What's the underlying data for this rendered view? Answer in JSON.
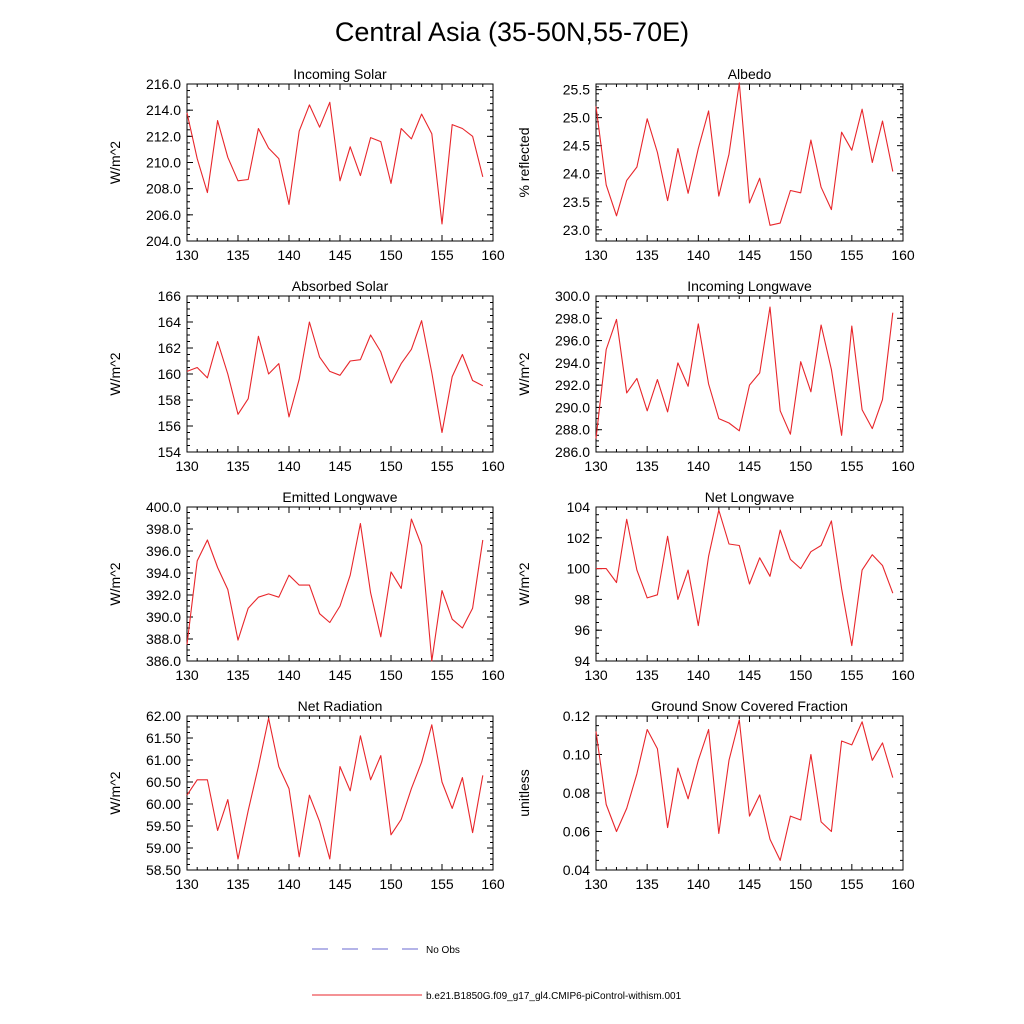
{
  "figure": {
    "title": "Central Asia (35-50N,55-70E)",
    "series_color": "#e8262b",
    "obs_color": "#6a6ad0"
  },
  "legend": {
    "obs_label": "No Obs",
    "model_label": "b.e21.B1850G.f09_g17_gl4.CMIP6-piControl-withism.001"
  },
  "chart_data": [
    {
      "type": "line",
      "title": "Incoming Solar",
      "ylabel": "W/m^2",
      "xlim": [
        130,
        160
      ],
      "ylim": [
        204,
        216
      ],
      "xticks": [
        "130",
        "135",
        "140",
        "145",
        "150",
        "155",
        "160"
      ],
      "yticks": [
        "204.0",
        "206.0",
        "208.0",
        "210.0",
        "212.0",
        "214.0",
        "216.0"
      ],
      "x": [
        130,
        131,
        132,
        133,
        134,
        135,
        136,
        137,
        138,
        139,
        140,
        141,
        142,
        143,
        144,
        145,
        146,
        147,
        148,
        149,
        150,
        151,
        152,
        153,
        154,
        155,
        156,
        157,
        158,
        159
      ],
      "series": [
        {
          "name": "b.e21.B1850G.f09_g17_gl4.CMIP6-piControl-withism.001",
          "values": [
            213.8,
            210.3,
            207.7,
            213.2,
            210.4,
            208.6,
            208.7,
            212.6,
            211.1,
            210.3,
            206.8,
            212.4,
            214.4,
            212.7,
            214.6,
            208.6,
            211.2,
            209.0,
            211.9,
            211.6,
            208.4,
            212.6,
            211.8,
            213.7,
            212.2,
            205.3,
            212.9,
            212.6,
            212.0,
            208.9
          ]
        }
      ]
    },
    {
      "type": "line",
      "title": "Albedo",
      "ylabel": "% reflected",
      "xlim": [
        130,
        160
      ],
      "ylim": [
        22.8,
        25.6
      ],
      "xticks": [
        "130",
        "135",
        "140",
        "145",
        "150",
        "155",
        "160"
      ],
      "yticks": [
        "23.0",
        "23.5",
        "24.0",
        "24.5",
        "25.0",
        "25.5"
      ],
      "ytick_values": [
        23.0,
        23.5,
        24.0,
        24.5,
        25.0,
        25.5
      ],
      "x": [
        130,
        131,
        132,
        133,
        134,
        135,
        136,
        137,
        138,
        139,
        140,
        141,
        142,
        143,
        144,
        145,
        146,
        147,
        148,
        149,
        150,
        151,
        152,
        153,
        154,
        155,
        156,
        157,
        158,
        159
      ],
      "series": [
        {
          "name": "b.e21.B1850G.f09_g17_gl4.CMIP6-piControl-withism.001",
          "values": [
            25.2,
            23.8,
            23.25,
            23.88,
            24.12,
            24.98,
            24.38,
            23.52,
            24.45,
            23.65,
            24.45,
            25.12,
            23.6,
            24.35,
            25.62,
            23.48,
            23.92,
            23.08,
            23.12,
            23.7,
            23.66,
            24.6,
            23.76,
            23.36,
            24.74,
            24.42,
            25.15,
            24.2,
            24.94,
            24.04
          ]
        }
      ]
    },
    {
      "type": "line",
      "title": "Absorbed Solar",
      "ylabel": "W/m^2",
      "xlim": [
        130,
        160
      ],
      "ylim": [
        154,
        166
      ],
      "xticks": [
        "130",
        "135",
        "140",
        "145",
        "150",
        "155",
        "160"
      ],
      "yticks": [
        "154",
        "156",
        "158",
        "160",
        "162",
        "164",
        "166"
      ],
      "x": [
        130,
        131,
        132,
        133,
        134,
        135,
        136,
        137,
        138,
        139,
        140,
        141,
        142,
        143,
        144,
        145,
        146,
        147,
        148,
        149,
        150,
        151,
        152,
        153,
        154,
        155,
        156,
        157,
        158,
        159
      ],
      "series": [
        {
          "name": "b.e21.B1850G.f09_g17_gl4.CMIP6-piControl-withism.001",
          "values": [
            160.2,
            160.5,
            159.7,
            162.5,
            160.0,
            156.9,
            158.1,
            162.9,
            160.0,
            160.8,
            156.7,
            159.6,
            164.0,
            161.3,
            160.2,
            159.9,
            161.0,
            161.1,
            163.0,
            161.7,
            159.3,
            160.8,
            161.9,
            164.1,
            160.1,
            155.5,
            159.8,
            161.5,
            159.5,
            159.1
          ]
        }
      ]
    },
    {
      "type": "line",
      "title": "Incoming Longwave",
      "ylabel": "W/m^2",
      "xlim": [
        130,
        160
      ],
      "ylim": [
        286,
        300
      ],
      "xticks": [
        "130",
        "135",
        "140",
        "145",
        "150",
        "155",
        "160"
      ],
      "yticks": [
        "286.0",
        "288.0",
        "290.0",
        "292.0",
        "294.0",
        "296.0",
        "298.0",
        "300.0"
      ],
      "x": [
        130,
        131,
        132,
        133,
        134,
        135,
        136,
        137,
        138,
        139,
        140,
        141,
        142,
        143,
        144,
        145,
        146,
        147,
        148,
        149,
        150,
        151,
        152,
        153,
        154,
        155,
        156,
        157,
        158,
        159
      ],
      "series": [
        {
          "name": "b.e21.B1850G.f09_g17_gl4.CMIP6-piControl-withism.001",
          "values": [
            287.2,
            295.2,
            297.9,
            291.3,
            292.6,
            289.7,
            292.5,
            289.6,
            294.0,
            291.9,
            297.5,
            292.1,
            289.0,
            288.6,
            287.9,
            292.0,
            293.1,
            299.0,
            289.7,
            287.6,
            294.1,
            291.4,
            297.4,
            293.4,
            287.5,
            297.3,
            289.8,
            288.1,
            290.7,
            298.5
          ]
        }
      ]
    },
    {
      "type": "line",
      "title": "Emitted Longwave",
      "ylabel": "W/m^2",
      "xlim": [
        130,
        160
      ],
      "ylim": [
        386,
        400
      ],
      "xticks": [
        "130",
        "135",
        "140",
        "145",
        "150",
        "155",
        "160"
      ],
      "yticks": [
        "386.0",
        "388.0",
        "390.0",
        "392.0",
        "394.0",
        "396.0",
        "398.0",
        "400.0"
      ],
      "x": [
        130,
        131,
        132,
        133,
        134,
        135,
        136,
        137,
        138,
        139,
        140,
        141,
        142,
        143,
        144,
        145,
        146,
        147,
        148,
        149,
        150,
        151,
        152,
        153,
        154,
        155,
        156,
        157,
        158,
        159
      ],
      "series": [
        {
          "name": "b.e21.B1850G.f09_g17_gl4.CMIP6-piControl-withism.001",
          "values": [
            387.5,
            395.1,
            397.0,
            394.5,
            392.5,
            387.9,
            390.8,
            391.8,
            392.1,
            391.8,
            393.8,
            392.9,
            392.9,
            390.3,
            389.5,
            391.0,
            393.8,
            398.5,
            392.2,
            388.2,
            394.1,
            392.6,
            398.9,
            396.5,
            386.0,
            392.4,
            389.8,
            389.0,
            390.8,
            397.0
          ]
        }
      ]
    },
    {
      "type": "line",
      "title": "Net Longwave",
      "ylabel": "W/m^2",
      "xlim": [
        130,
        160
      ],
      "ylim": [
        94,
        104
      ],
      "xticks": [
        "130",
        "135",
        "140",
        "145",
        "150",
        "155",
        "160"
      ],
      "yticks": [
        "94",
        "96",
        "98",
        "100",
        "102",
        "104"
      ],
      "x": [
        130,
        131,
        132,
        133,
        134,
        135,
        136,
        137,
        138,
        139,
        140,
        141,
        142,
        143,
        144,
        145,
        146,
        147,
        148,
        149,
        150,
        151,
        152,
        153,
        154,
        155,
        156,
        157,
        158,
        159
      ],
      "series": [
        {
          "name": "b.e21.B1850G.f09_g17_gl4.CMIP6-piControl-withism.001",
          "values": [
            100.0,
            100.0,
            99.1,
            103.2,
            99.9,
            98.1,
            98.3,
            102.1,
            98.0,
            99.9,
            96.3,
            100.8,
            103.8,
            101.6,
            101.5,
            99.0,
            100.7,
            99.5,
            102.5,
            100.6,
            100.0,
            101.1,
            101.5,
            103.1,
            98.7,
            95.0,
            99.9,
            100.9,
            100.2,
            98.4
          ]
        }
      ]
    },
    {
      "type": "line",
      "title": "Net Radiation",
      "ylabel": "W/m^2",
      "xlim": [
        130,
        160
      ],
      "ylim": [
        58.5,
        62.0
      ],
      "xticks": [
        "130",
        "135",
        "140",
        "145",
        "150",
        "155",
        "160"
      ],
      "yticks": [
        "58.50",
        "59.00",
        "59.50",
        "60.00",
        "60.50",
        "61.00",
        "61.50",
        "62.00"
      ],
      "x": [
        130,
        131,
        132,
        133,
        134,
        135,
        136,
        137,
        138,
        139,
        140,
        141,
        142,
        143,
        144,
        145,
        146,
        147,
        148,
        149,
        150,
        151,
        152,
        153,
        154,
        155,
        156,
        157,
        158,
        159
      ],
      "series": [
        {
          "name": "b.e21.B1850G.f09_g17_gl4.CMIP6-piControl-withism.001",
          "values": [
            60.2,
            60.55,
            60.55,
            59.4,
            60.1,
            58.75,
            59.85,
            60.85,
            61.95,
            60.85,
            60.35,
            58.8,
            60.2,
            59.6,
            58.75,
            60.85,
            60.3,
            61.55,
            60.55,
            61.1,
            59.3,
            59.65,
            60.35,
            60.95,
            61.8,
            60.5,
            59.9,
            60.6,
            59.35,
            60.65
          ]
        }
      ]
    },
    {
      "type": "line",
      "title": "Ground Snow Covered Fraction",
      "ylabel": "unitless",
      "xlim": [
        130,
        160
      ],
      "ylim": [
        0.04,
        0.12
      ],
      "xticks": [
        "130",
        "135",
        "140",
        "145",
        "150",
        "155",
        "160"
      ],
      "yticks": [
        "0.04",
        "0.06",
        "0.08",
        "0.10",
        "0.12"
      ],
      "x": [
        130,
        131,
        132,
        133,
        134,
        135,
        136,
        137,
        138,
        139,
        140,
        141,
        142,
        143,
        144,
        145,
        146,
        147,
        148,
        149,
        150,
        151,
        152,
        153,
        154,
        155,
        156,
        157,
        158,
        159
      ],
      "series": [
        {
          "name": "b.e21.B1850G.f09_g17_gl4.CMIP6-piControl-withism.001",
          "values": [
            0.112,
            0.074,
            0.06,
            0.072,
            0.09,
            0.113,
            0.103,
            0.062,
            0.093,
            0.077,
            0.097,
            0.113,
            0.059,
            0.097,
            0.118,
            0.068,
            0.079,
            0.056,
            0.045,
            0.068,
            0.066,
            0.1,
            0.065,
            0.06,
            0.107,
            0.105,
            0.117,
            0.097,
            0.106,
            0.088
          ]
        }
      ]
    }
  ]
}
